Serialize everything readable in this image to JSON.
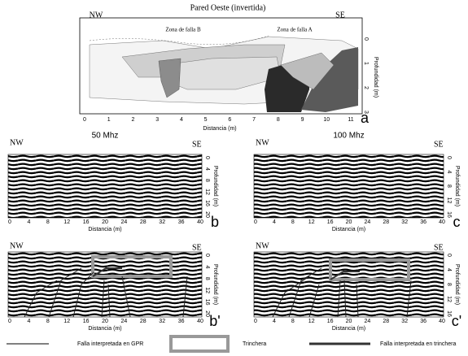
{
  "panel_a": {
    "title": "Pared Oeste (invertida)",
    "left": "NW",
    "right": "SE",
    "zones": [
      "Zona de falla B",
      "Zona de falla A"
    ],
    "x_ticks": [
      0,
      1,
      2,
      3,
      4,
      5,
      6,
      7,
      8,
      9,
      10,
      11
    ],
    "x_label": "Distancia (m)",
    "y_ticks": [
      0,
      1,
      2,
      3
    ],
    "y_label": "Profundidad (m)",
    "label": "a"
  },
  "panels": [
    {
      "label": "b",
      "title": "50 Mhz",
      "left": "NW",
      "right": "SE",
      "x_ticks": [
        0,
        4,
        8,
        12,
        16,
        20,
        24,
        28,
        32,
        36,
        40
      ],
      "x_label": "Distancia (m)",
      "y_ticks": [
        0,
        4,
        8,
        12,
        16,
        20
      ],
      "y_label": "Profundidad (m)"
    },
    {
      "label": "c",
      "title": "100 Mhz",
      "left": "NW",
      "right": "SE",
      "x_ticks": [
        0,
        4,
        8,
        12,
        16,
        20,
        24,
        28,
        32,
        36,
        40
      ],
      "x_label": "Distancia (m)",
      "y_ticks": [
        0,
        4,
        8,
        12,
        16
      ],
      "y_label": "Profundidad (m)"
    },
    {
      "label": "b'",
      "left": "NW",
      "right": "SE",
      "x_ticks": [
        0,
        4,
        8,
        12,
        16,
        20,
        24,
        28,
        32,
        36,
        40
      ],
      "x_label": "Distancia (m)",
      "y_ticks": [
        0,
        4,
        8,
        12,
        16,
        20
      ],
      "y_label": "Profundidad (m)"
    },
    {
      "label": "c'",
      "left": "NW",
      "right": "SE",
      "x_ticks": [
        0,
        4,
        8,
        12,
        16,
        20,
        24,
        28,
        32,
        36,
        40
      ],
      "x_label": "Distancia (m)",
      "y_ticks": [
        0,
        4,
        8,
        12,
        16
      ],
      "y_label": "Profundidad (m)"
    }
  ],
  "legend": [
    "Falla interpretada en GPR",
    "Trinchera",
    "Falla interpretada en trinchera"
  ]
}
